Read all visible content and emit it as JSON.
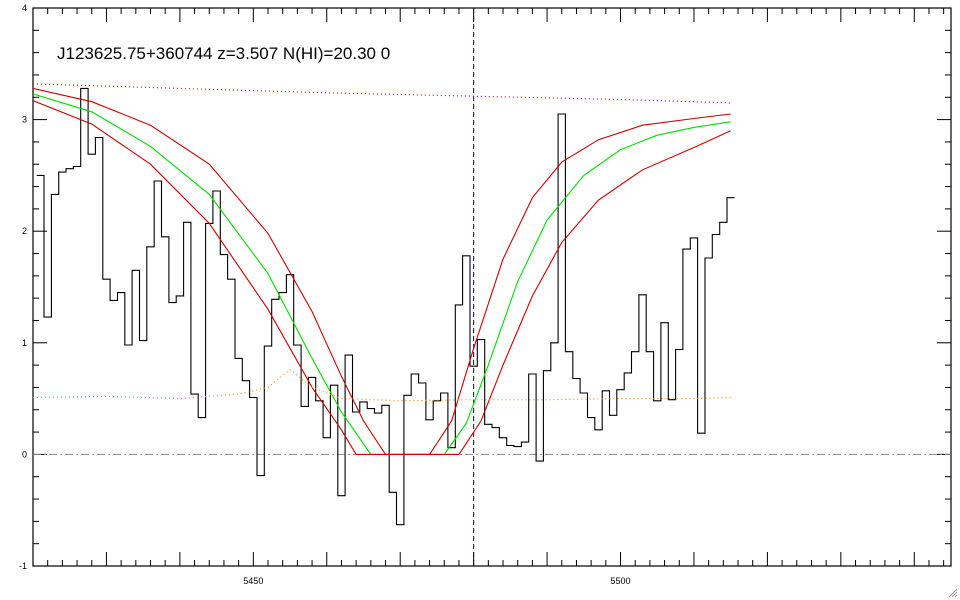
{
  "chart_data": {
    "type": "line",
    "title": "J123625.75+360744 z=3.507 N(HI)=20.30 0",
    "xlabel": "",
    "ylabel": "",
    "xlim": [
      5420,
      5545
    ],
    "ylim": [
      -1,
      4
    ],
    "x_ticks": [
      5450,
      5500
    ],
    "y_ticks": [
      -1,
      0,
      1,
      2,
      3,
      4
    ],
    "grid": false,
    "legend": "none",
    "reference_lines": {
      "zero_level": 0,
      "line_center": 5480
    },
    "colors": {
      "spectrum": "#000000",
      "model": "#00dd00",
      "model_bounds": "#cc0000",
      "continuum": "#aa00ff",
      "error": "#ff8800",
      "zero_line": "#888888",
      "center_line": "#000088"
    },
    "series": [
      {
        "kind": "step",
        "color": "#000000",
        "points": [
          [
            5421,
            2.5
          ],
          [
            5422,
            1.23
          ],
          [
            5423,
            2.33
          ],
          [
            5424,
            2.53
          ],
          [
            5425,
            2.56
          ],
          [
            5426,
            2.58
          ],
          [
            5427,
            3.28
          ],
          [
            5428,
            2.69
          ],
          [
            5429,
            2.84
          ],
          [
            5430,
            1.57
          ],
          [
            5431,
            1.38
          ],
          [
            5432,
            1.45
          ],
          [
            5433,
            0.98
          ],
          [
            5434,
            1.65
          ],
          [
            5435,
            1.02
          ],
          [
            5436,
            1.86
          ],
          [
            5437,
            2.45
          ],
          [
            5438,
            1.95
          ],
          [
            5439,
            1.36
          ],
          [
            5440,
            1.42
          ],
          [
            5441,
            2.08
          ],
          [
            5442,
            0.54
          ],
          [
            5443,
            0.33
          ],
          [
            5444,
            2.07
          ],
          [
            5445,
            2.36
          ],
          [
            5446,
            1.79
          ],
          [
            5447,
            1.57
          ],
          [
            5448,
            0.86
          ],
          [
            5449,
            0.66
          ],
          [
            5450,
            0.51
          ],
          [
            5451,
            -0.19
          ],
          [
            5452,
            0.97
          ],
          [
            5453,
            1.39
          ],
          [
            5454,
            1.45
          ],
          [
            5455,
            1.61
          ],
          [
            5456,
            0.98
          ],
          [
            5457,
            0.43
          ],
          [
            5458,
            0.69
          ],
          [
            5459,
            0.48
          ],
          [
            5460,
            0.15
          ],
          [
            5461,
            0.62
          ],
          [
            5462,
            -0.37
          ],
          [
            5463,
            0.89
          ],
          [
            5464,
            0.38
          ],
          [
            5465,
            0.47
          ],
          [
            5466,
            0.41
          ],
          [
            5467,
            0.37
          ],
          [
            5468,
            0.44
          ],
          [
            5469,
            -0.34
          ],
          [
            5470,
            -0.63
          ],
          [
            5471,
            0.53
          ],
          [
            5472,
            0.72
          ],
          [
            5473,
            0.64
          ],
          [
            5474,
            0.31
          ],
          [
            5475,
            0.48
          ],
          [
            5476,
            0.55
          ],
          [
            5477,
            0.06
          ],
          [
            5478,
            1.34
          ],
          [
            5479,
            1.78
          ],
          [
            5480,
            0.79
          ],
          [
            5481,
            1.03
          ],
          [
            5482,
            0.27
          ],
          [
            5483,
            0.24
          ],
          [
            5484,
            0.15
          ],
          [
            5485,
            0.08
          ],
          [
            5486,
            0.07
          ],
          [
            5487,
            0.11
          ],
          [
            5488,
            0.72
          ],
          [
            5489,
            -0.06
          ],
          [
            5490,
            0.75
          ],
          [
            5491,
            1.0
          ],
          [
            5492,
            3.05
          ],
          [
            5493,
            0.92
          ],
          [
            5494,
            0.68
          ],
          [
            5495,
            0.55
          ],
          [
            5496,
            0.33
          ],
          [
            5497,
            0.22
          ],
          [
            5498,
            0.57
          ],
          [
            5499,
            0.35
          ],
          [
            5500,
            0.58
          ],
          [
            5501,
            0.73
          ],
          [
            5502,
            0.92
          ],
          [
            5503,
            1.43
          ],
          [
            5504,
            0.92
          ],
          [
            5505,
            0.48
          ],
          [
            5506,
            1.18
          ],
          [
            5507,
            0.49
          ],
          [
            5508,
            0.94
          ],
          [
            5509,
            1.84
          ],
          [
            5510,
            1.94
          ],
          [
            5511,
            0.19
          ],
          [
            5512,
            1.76
          ],
          [
            5513,
            1.97
          ],
          [
            5514,
            2.08
          ],
          [
            5515,
            2.3
          ]
        ]
      },
      {
        "kind": "line",
        "color": "#00dd00",
        "points": [
          [
            5420,
            3.23
          ],
          [
            5428,
            3.07
          ],
          [
            5436,
            2.76
          ],
          [
            5444,
            2.33
          ],
          [
            5452,
            1.62
          ],
          [
            5458,
            0.86
          ],
          [
            5462,
            0.38
          ],
          [
            5466,
            0.0
          ],
          [
            5476,
            0.0
          ],
          [
            5479,
            0.28
          ],
          [
            5482,
            0.8
          ],
          [
            5486,
            1.55
          ],
          [
            5490,
            2.1
          ],
          [
            5495,
            2.5
          ],
          [
            5500,
            2.73
          ],
          [
            5505,
            2.86
          ],
          [
            5510,
            2.93
          ],
          [
            5515,
            2.98
          ]
        ]
      },
      {
        "kind": "line",
        "color": "#cc0000",
        "points": [
          [
            5420,
            3.28
          ],
          [
            5428,
            3.16
          ],
          [
            5436,
            2.95
          ],
          [
            5444,
            2.6
          ],
          [
            5452,
            1.98
          ],
          [
            5458,
            1.28
          ],
          [
            5462,
            0.7
          ],
          [
            5465,
            0.3
          ],
          [
            5468,
            0.0
          ],
          [
            5474,
            0.0
          ],
          [
            5477,
            0.3
          ],
          [
            5480,
            0.95
          ],
          [
            5484,
            1.75
          ],
          [
            5488,
            2.3
          ],
          [
            5492,
            2.62
          ],
          [
            5497,
            2.82
          ],
          [
            5503,
            2.95
          ],
          [
            5510,
            3.01
          ],
          [
            5515,
            3.05
          ]
        ]
      },
      {
        "kind": "line",
        "color": "#cc0000",
        "points": [
          [
            5420,
            3.17
          ],
          [
            5428,
            2.96
          ],
          [
            5436,
            2.6
          ],
          [
            5444,
            2.07
          ],
          [
            5452,
            1.3
          ],
          [
            5458,
            0.6
          ],
          [
            5462,
            0.22
          ],
          [
            5464,
            0.0
          ],
          [
            5478,
            0.0
          ],
          [
            5481,
            0.3
          ],
          [
            5484,
            0.8
          ],
          [
            5488,
            1.42
          ],
          [
            5492,
            1.9
          ],
          [
            5497,
            2.28
          ],
          [
            5503,
            2.55
          ],
          [
            5510,
            2.75
          ],
          [
            5515,
            2.9
          ]
        ]
      },
      {
        "kind": "dotted",
        "color": "#aa00ff",
        "points": [
          [
            5420,
            3.32
          ],
          [
            5440,
            3.28
          ],
          [
            5460,
            3.24
          ],
          [
            5480,
            3.21
          ],
          [
            5500,
            3.18
          ],
          [
            5515,
            3.15
          ]
        ]
      },
      {
        "kind": "dotted",
        "color": "#ff8800",
        "points": [
          [
            5420,
            0.51
          ],
          [
            5430,
            0.52
          ],
          [
            5440,
            0.5
          ],
          [
            5448,
            0.54
          ],
          [
            5452,
            0.6
          ],
          [
            5455,
            0.76
          ],
          [
            5458,
            0.6
          ],
          [
            5462,
            0.5
          ],
          [
            5470,
            0.48
          ],
          [
            5480,
            0.49
          ],
          [
            5490,
            0.49
          ],
          [
            5500,
            0.5
          ],
          [
            5510,
            0.5
          ],
          [
            5515,
            0.51
          ]
        ]
      }
    ]
  }
}
